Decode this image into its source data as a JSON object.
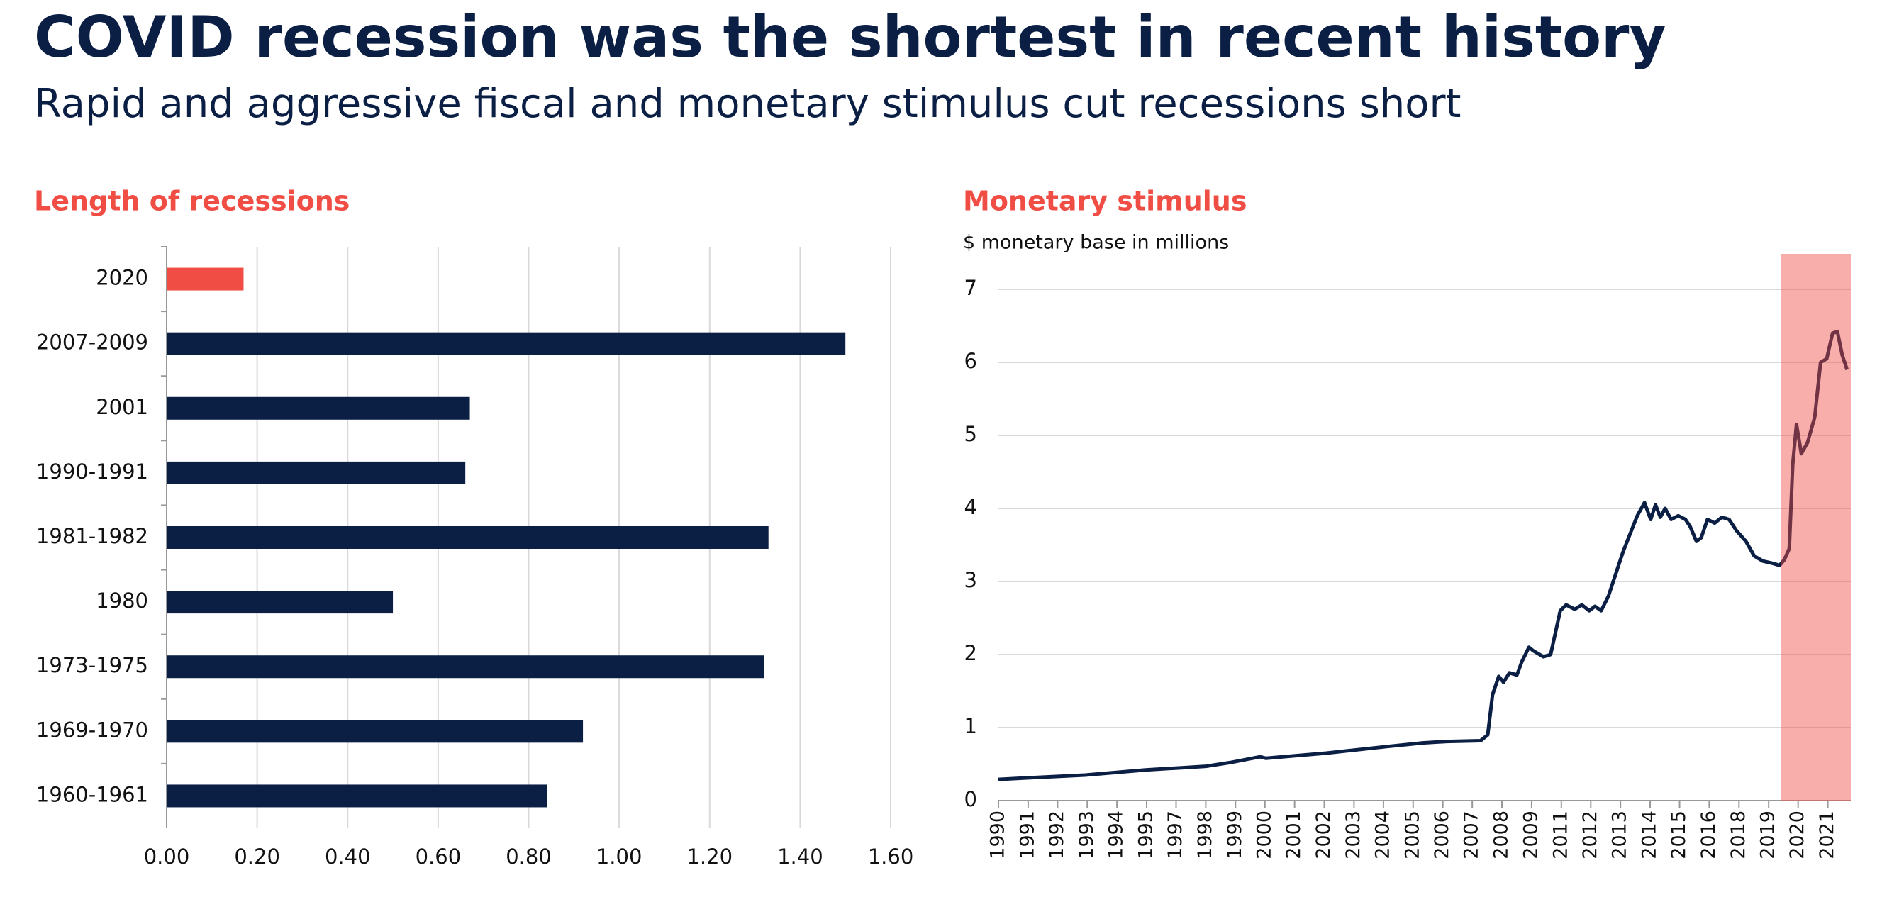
{
  "header": {
    "title": "COVID recession was the shortest in recent history",
    "subtitle": "Rapid and aggressive fiscal and monetary stimulus cut recessions short"
  },
  "chart_data": [
    {
      "type": "hbar",
      "title": "Length of recessions",
      "categories": [
        "2020",
        "2007-2009",
        "2001",
        "1990-1991",
        "1981-1982",
        "1980",
        "1973-1975",
        "1969-1970",
        "1960-1961"
      ],
      "values": [
        0.17,
        1.5,
        0.67,
        0.66,
        1.33,
        0.5,
        1.32,
        0.92,
        0.84
      ],
      "colors": [
        "#f04e45",
        "#0b1f45",
        "#0b1f45",
        "#0b1f45",
        "#0b1f45",
        "#0b1f45",
        "#0b1f45",
        "#0b1f45",
        "#0b1f45"
      ],
      "xlim": [
        0,
        1.6
      ],
      "xticks": [
        {
          "value": 0,
          "label": "0.00"
        },
        {
          "value": 0.2,
          "label": "0.20"
        },
        {
          "value": 0.4,
          "label": "0.40"
        },
        {
          "value": 0.6,
          "label": "0.60"
        },
        {
          "value": 0.8,
          "label": "0.80"
        },
        {
          "value": 1,
          "label": "1.00"
        },
        {
          "value": 1.2,
          "label": "1.20"
        },
        {
          "value": 1.4,
          "label": "1.40"
        },
        {
          "value": 1.6,
          "label": "1.60"
        }
      ],
      "grid": true
    },
    {
      "type": "line",
      "title": "Monetary stimulus",
      "y_label": "$ monetary base in millions",
      "x": [
        1990.0,
        1991.0,
        1993.24,
        1995.5,
        1996.85,
        1997.75,
        1998.65,
        1999.78,
        2000.0,
        2002.26,
        2004.51,
        2005.86,
        2006.75,
        2008.02,
        2008.29,
        2008.47,
        2008.7,
        2008.88,
        2009.1,
        2009.38,
        2009.56,
        2009.83,
        2010.0,
        2010.37,
        2010.64,
        2010.82,
        2011.0,
        2011.22,
        2011.54,
        2011.81,
        2012.08,
        2012.3,
        2012.53,
        2012.8,
        2013.07,
        2013.34,
        2013.61,
        2013.88,
        2014.15,
        2014.38,
        2014.56,
        2014.74,
        2014.92,
        2015.14,
        2015.41,
        2015.68,
        2015.86,
        2016.09,
        2016.27,
        2016.5,
        2016.77,
        2017.04,
        2017.31,
        2017.58,
        2017.94,
        2018.25,
        2018.57,
        2018.93,
        2019.2,
        2019.38,
        2019.56,
        2019.69,
        2019.83,
        2020.01,
        2020.24,
        2020.51,
        2020.73,
        2020.96,
        2021.18,
        2021.36,
        2021.54,
        2021.72
      ],
      "series": [
        {
          "name": "Monetary base",
          "color": "#0b1f45",
          "values": [
            0.29,
            0.31,
            0.35,
            0.42,
            0.45,
            0.47,
            0.52,
            0.6,
            0.58,
            0.65,
            0.74,
            0.79,
            0.81,
            0.82,
            0.9,
            1.45,
            1.7,
            1.62,
            1.75,
            1.72,
            1.9,
            2.1,
            2.05,
            1.97,
            2.0,
            2.3,
            2.6,
            2.68,
            2.62,
            2.68,
            2.6,
            2.66,
            2.6,
            2.8,
            3.1,
            3.4,
            3.65,
            3.9,
            4.08,
            3.85,
            4.05,
            3.88,
            4.0,
            3.85,
            3.9,
            3.85,
            3.75,
            3.55,
            3.6,
            3.85,
            3.8,
            3.88,
            3.85,
            3.7,
            3.55,
            3.35,
            3.28,
            3.25,
            3.22,
            3.3,
            3.45,
            4.6,
            5.15,
            4.75,
            4.9,
            5.25,
            6.0,
            6.05,
            6.4,
            6.42,
            6.1,
            5.9
          ]
        }
      ],
      "xlim": [
        1990,
        2021.86
      ],
      "xticks": [
        {
          "value": 1990,
          "label": "1990"
        },
        {
          "value": 1991.11,
          "label": "1991"
        },
        {
          "value": 1992.21,
          "label": "1992"
        },
        {
          "value": 1993.32,
          "label": "1993"
        },
        {
          "value": 1994.43,
          "label": "1994"
        },
        {
          "value": 1995.54,
          "label": "1995"
        },
        {
          "value": 1996.64,
          "label": "1997"
        },
        {
          "value": 1997.75,
          "label": "1998"
        },
        {
          "value": 1998.86,
          "label": "1999"
        },
        {
          "value": 1999.96,
          "label": "2000"
        },
        {
          "value": 2001.07,
          "label": "2001"
        },
        {
          "value": 2002.18,
          "label": "2002"
        },
        {
          "value": 2003.29,
          "label": "2003"
        },
        {
          "value": 2004.39,
          "label": "2004"
        },
        {
          "value": 2005.5,
          "label": "2005"
        },
        {
          "value": 2006.61,
          "label": "2006"
        },
        {
          "value": 2007.71,
          "label": "2007"
        },
        {
          "value": 2008.82,
          "label": "2008"
        },
        {
          "value": 2009.93,
          "label": "2009"
        },
        {
          "value": 2011.04,
          "label": "2011"
        },
        {
          "value": 2012.14,
          "label": "2012"
        },
        {
          "value": 2013.25,
          "label": "2013"
        },
        {
          "value": 2014.36,
          "label": "2014"
        },
        {
          "value": 2015.46,
          "label": "2015"
        },
        {
          "value": 2016.57,
          "label": "2016"
        },
        {
          "value": 2017.68,
          "label": "2018"
        },
        {
          "value": 2018.79,
          "label": "2019"
        },
        {
          "value": 2019.89,
          "label": "2020"
        },
        {
          "value": 2021.0,
          "label": "2021"
        }
      ],
      "ylim": [
        0,
        7
      ],
      "yticks": [
        0,
        1,
        2,
        3,
        4,
        5,
        6,
        7
      ],
      "grid": true,
      "highlight": {
        "x": [
          2019.24,
          2021.86
        ],
        "color": "#f04e45"
      }
    }
  ]
}
